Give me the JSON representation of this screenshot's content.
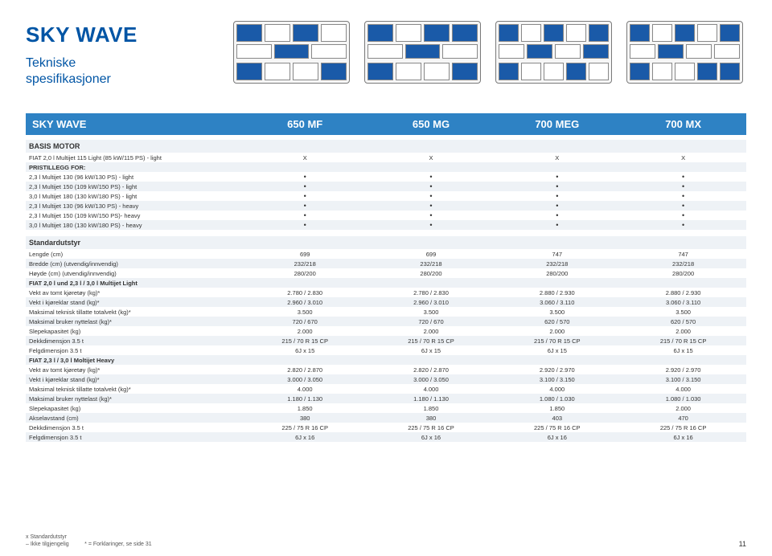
{
  "brand": {
    "title": "SKY WAVE",
    "subtitle_l1": "Tekniske",
    "subtitle_l2": "spesifikasjoner"
  },
  "header": {
    "label": "SKY WAVE",
    "cols": [
      "650 MF",
      "650 MG",
      "700 MEG",
      "700 MX"
    ]
  },
  "colors": {
    "accent": "#0055a5",
    "header_bg": "#2e82c4",
    "header_fg": "#ffffff",
    "row_alt": "#eef2f6",
    "text": "#333333"
  },
  "motor": {
    "title": "BASIS MOTOR",
    "rows": [
      {
        "label": "FIAT 2,0 l Multijet 115 Light (85 kW/115 PS) - light",
        "vals": [
          "X",
          "X",
          "X",
          "X"
        ]
      },
      {
        "label": "PRISTILLEGG FOR:",
        "vals": [
          "",
          "",
          "",
          ""
        ],
        "bold": true
      },
      {
        "label": "2,3 l Multijet 130 (96 kW/130 PS) - light",
        "vals": [
          "•",
          "•",
          "•",
          "•"
        ]
      },
      {
        "label": "2,3 l Multijet 150 (109 kW/150 PS) - light",
        "vals": [
          "•",
          "•",
          "•",
          "•"
        ]
      },
      {
        "label": "3,0 l Multijet 180 (130 kW/180 PS) - light",
        "vals": [
          "•",
          "•",
          "•",
          "•"
        ]
      },
      {
        "label": "2,3 l Multijet 130 (96 kW/130 PS) - heavy",
        "vals": [
          "•",
          "•",
          "•",
          "•"
        ]
      },
      {
        "label": "2,3 l Multijet 150 (109 kW/150 PS)- heavy",
        "vals": [
          "•",
          "•",
          "•",
          "•"
        ]
      },
      {
        "label": "3,0 l Multijet 180 (130 kW/180 PS) - heavy",
        "vals": [
          "•",
          "•",
          "•",
          "•"
        ]
      }
    ]
  },
  "std": {
    "title": "Standardutstyr",
    "rows": [
      {
        "label": "Lengde (cm)",
        "vals": [
          "699",
          "699",
          "747",
          "747"
        ]
      },
      {
        "label": "Bredde (cm) (utvendig/innvendig)",
        "vals": [
          "232/218",
          "232/218",
          "232/218",
          "232/218"
        ]
      },
      {
        "label": "Høyde (cm) (utvendig/innvendig)",
        "vals": [
          "280/200",
          "280/200",
          "280/200",
          "280/200"
        ]
      },
      {
        "label": "FIAT 2,0 l und 2,3 l / 3,0 l Multijet Light",
        "vals": [
          "",
          "",
          "",
          ""
        ],
        "bold": true
      },
      {
        "label": "Vekt av tomt kjøretøy (kg)*",
        "vals": [
          "2.780 / 2.830",
          "2.780 / 2.830",
          "2.880 / 2.930",
          "2.880 / 2.930"
        ]
      },
      {
        "label": "Vekt i kjøreklar stand (kg)*",
        "vals": [
          "2.960 / 3.010",
          "2.960 / 3.010",
          "3.060 / 3.110",
          "3.060 / 3.110"
        ]
      },
      {
        "label": "Maksimal teknisk tillatte totalvekt (kg)*",
        "vals": [
          "3.500",
          "3.500",
          "3.500",
          "3.500"
        ]
      },
      {
        "label": "Maksimal bruker nyttelast (kg)*",
        "vals": [
          "720 / 670",
          "720 / 670",
          "620 / 570",
          "620 / 570"
        ]
      },
      {
        "label": "Slepekapasitet (kg)",
        "vals": [
          "2.000",
          "2.000",
          "2.000",
          "2.000"
        ]
      },
      {
        "label": "Dekkdimensjon 3.5 t",
        "vals": [
          "215 / 70 R 15 CP",
          "215 / 70 R 15 CP",
          "215 / 70 R 15 CP",
          "215 / 70 R 15 CP"
        ]
      },
      {
        "label": "Felgdimensjon 3.5 t",
        "vals": [
          "6J x 15",
          "6J x 15",
          "6J x 15",
          "6J x 15"
        ]
      },
      {
        "label": "FIAT 2,3 l / 3,0 l Moltijet Heavy",
        "vals": [
          "",
          "",
          "",
          ""
        ],
        "bold": true
      },
      {
        "label": "Vekt av tomt kjøretøy (kg)*",
        "vals": [
          "2.820 / 2.870",
          "2.820 / 2.870",
          "2.920 / 2.970",
          "2.920 / 2.970"
        ]
      },
      {
        "label": "Vekt i kjøreklar stand (kg)*",
        "vals": [
          "3.000 / 3.050",
          "3.000 / 3.050",
          "3.100 / 3.150",
          "3.100 / 3.150"
        ]
      },
      {
        "label": "Maksimal teknisk tillatte totalvekt (kg)*",
        "vals": [
          "4.000",
          "4.000",
          "4.000",
          "4.000"
        ]
      },
      {
        "label": "Maksimal bruker nyttelast (kg)*",
        "vals": [
          "1.180 / 1.130",
          "1.180 / 1.130",
          "1.080 / 1.030",
          "1.080 / 1.030"
        ]
      },
      {
        "label": "Slepekapasitet (kg)",
        "vals": [
          "1.850",
          "1.850",
          "1.850",
          "2.000"
        ]
      },
      {
        "label": "Akselavstand (cm)",
        "vals": [
          "380",
          "380",
          "403",
          "470"
        ]
      },
      {
        "label": "Dekkdimensjon 3.5 t",
        "vals": [
          "225 / 75 R 16 CP",
          "225 / 75 R 16 CP",
          "225 / 75 R 16 CP",
          "225 / 75 R 16 CP"
        ]
      },
      {
        "label": "Felgdimensjon 3.5 t",
        "vals": [
          "6J x 16",
          "6J x 16",
          "6J x 16",
          "6J x 16"
        ]
      }
    ]
  },
  "footer": {
    "leg1": "x  Standardutstyr",
    "leg2": "–  Ikke tilgjengelig",
    "leg3": "*  =  Forklaringer, se side 31",
    "page": "11"
  }
}
